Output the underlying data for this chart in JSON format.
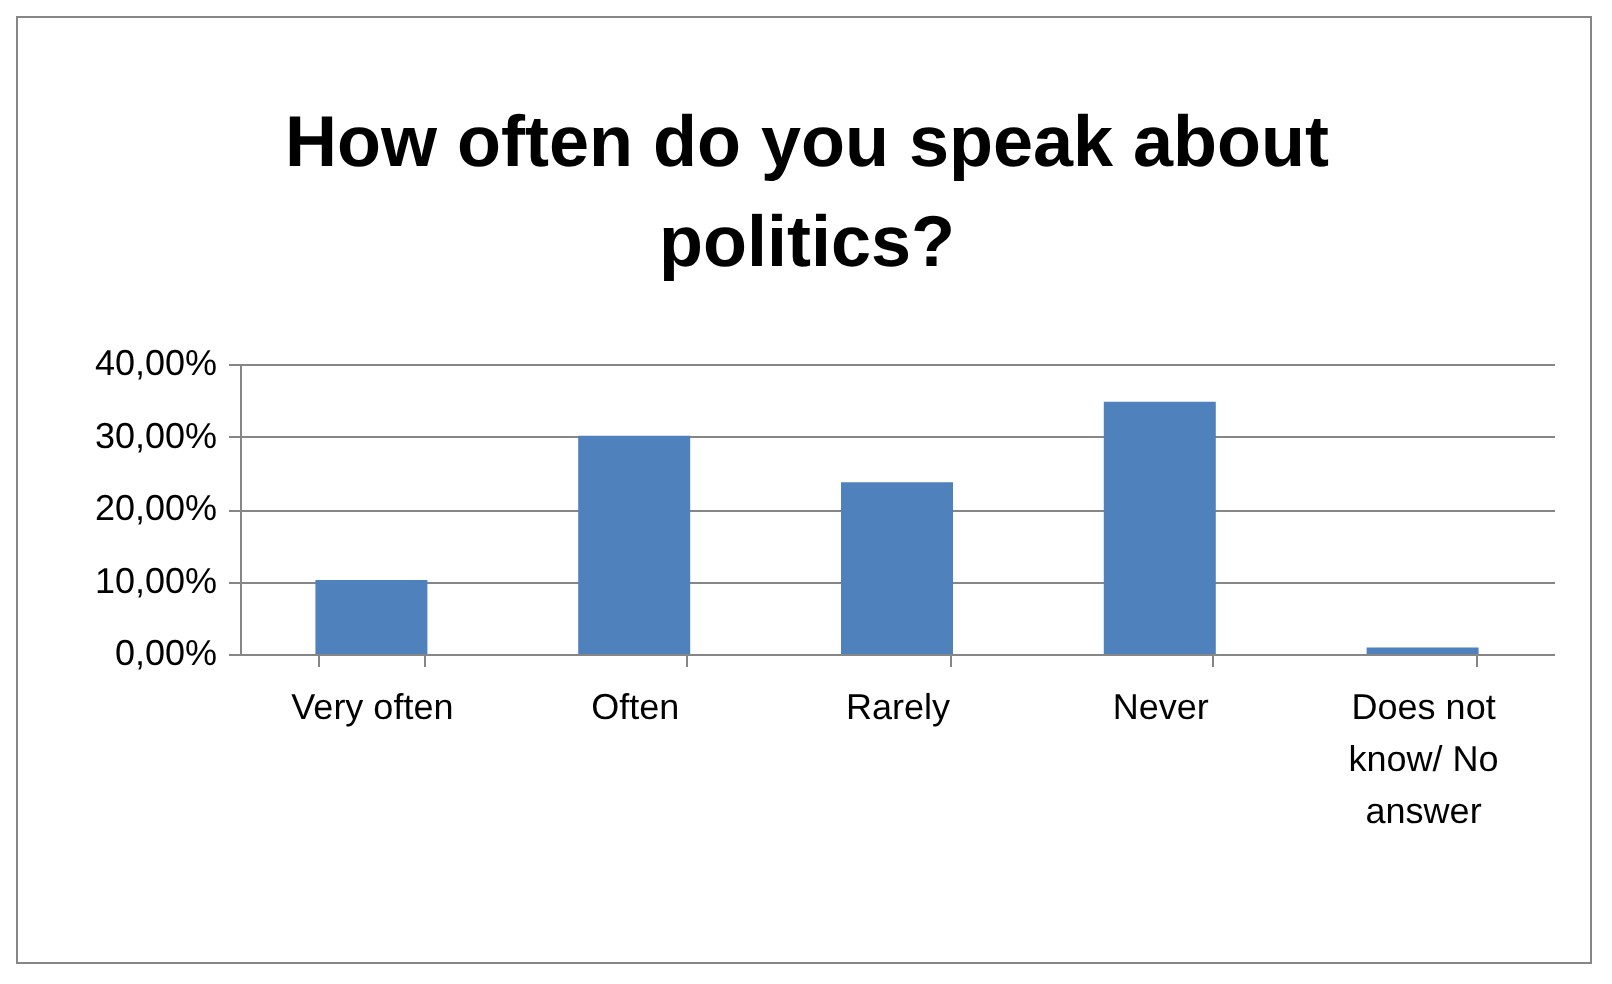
{
  "chart_data": {
    "type": "bar",
    "title": "How often do you speak about politics?",
    "categories": [
      "Very often",
      "Often",
      "Rarely",
      "Never",
      "Does not know/ No answer"
    ],
    "values": [
      10.2,
      30.1,
      23.7,
      34.8,
      0.9
    ],
    "color": "#4f81bd",
    "ylim": [
      0,
      40
    ],
    "yticks": [
      {
        "value": 0,
        "label": "0,00%"
      },
      {
        "value": 10,
        "label": "10,00%"
      },
      {
        "value": 20,
        "label": "20,00%"
      },
      {
        "value": 30,
        "label": "30,00%"
      },
      {
        "value": 40,
        "label": "40,00%"
      }
    ],
    "grid": "y"
  }
}
